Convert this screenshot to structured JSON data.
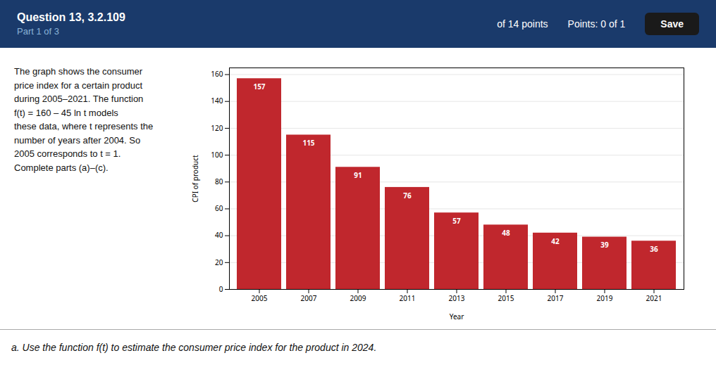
{
  "chart_data": {
    "type": "bar",
    "categories": [
      "2005",
      "2007",
      "2009",
      "2011",
      "2013",
      "2015",
      "2017",
      "2019",
      "2021"
    ],
    "values": [
      157,
      115,
      91,
      76,
      57,
      48,
      42,
      39,
      36
    ],
    "color": "#c0272d",
    "xlabel": "Year",
    "ylabel": "CPI of product",
    "ylim": [
      0,
      165
    ],
    "yticks": [
      0,
      20,
      40,
      60,
      80,
      100,
      120,
      140,
      160
    ],
    "grid": true,
    "data_labels": true,
    "annotations": [
      "Question 13, 3.2.109",
      "Part 1 of 3",
      "of 14 points",
      "Points: 0 of 1",
      "Save",
      "The graph shows the consumer\nprice index for a certain product\nduring 2005–2021. The function\nf(t) = 160 – 45 ln t models\nthese data, where t represents the\nnumber of years after 2004. So\n2005 corresponds to t = 1.\nComplete parts (a)–(c).",
      "a. Use the function f(t) to estimate the consumer price index for the product in 2024."
    ]
  }
}
